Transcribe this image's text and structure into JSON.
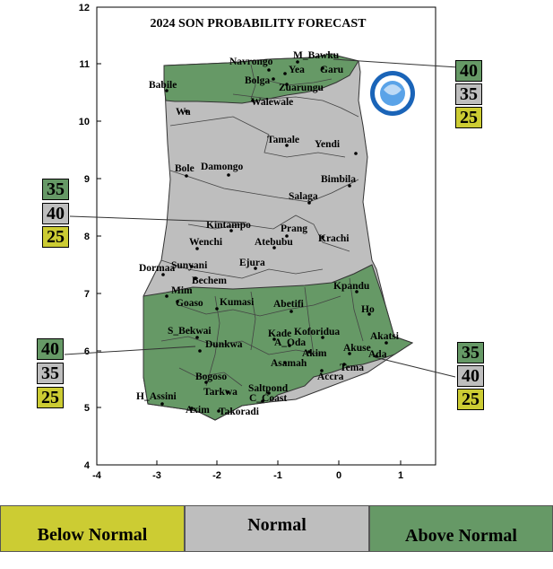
{
  "title": "2024 SON PROBABILITY FORECAST",
  "colors": {
    "above_normal": "#669966",
    "normal": "#bebebe",
    "below_normal": "#cccc33",
    "border": "#333333"
  },
  "axes": {
    "x_ticks": [
      "-4",
      "-3",
      "-2",
      "-1",
      "0",
      "1"
    ],
    "y_ticks": [
      "4",
      "5",
      "6",
      "7",
      "8",
      "9",
      "10",
      "11",
      "12"
    ]
  },
  "cities": [
    "Navrongo",
    "M_Bawku",
    "Yea",
    "Garu",
    "Bolga",
    "Zuarungu",
    "Babile",
    "Walewale",
    "Wa",
    "Tamale",
    "Yendi",
    "Bole",
    "Damongo",
    "Bimbila",
    "Salaga",
    "Kintampo",
    "Prang",
    "Krachi",
    "Wenchi",
    "Atebubu",
    "Dormaa",
    "Sunyani",
    "Ejura",
    "Bechem",
    "Kpandu",
    "Mim",
    "Goaso",
    "Kumasi",
    "Abetifi",
    "Ho",
    "S_Bekwai",
    "Kade",
    "Koforidua",
    "Akatsi",
    "A_Oda",
    "Akuse",
    "Dunkwa",
    "Ada",
    "Akim",
    "Asamah",
    "Tema",
    "Bogoso",
    "Accra",
    "Tarkwa",
    "Saltpond",
    "H_Assini",
    "C_Coast",
    "Axim",
    "Takoradi"
  ],
  "zones": {
    "north_east": {
      "above": "40",
      "normal": "35",
      "below": "25"
    },
    "middle_west": {
      "above": "35",
      "normal": "40",
      "below": "25"
    },
    "south_west": {
      "above": "40",
      "normal": "35",
      "below": "25"
    },
    "south_east": {
      "above": "35",
      "normal": "40",
      "below": "25"
    }
  },
  "legend": {
    "below_normal": "Below Normal",
    "normal": "Normal",
    "above_normal": "Above Normal"
  }
}
